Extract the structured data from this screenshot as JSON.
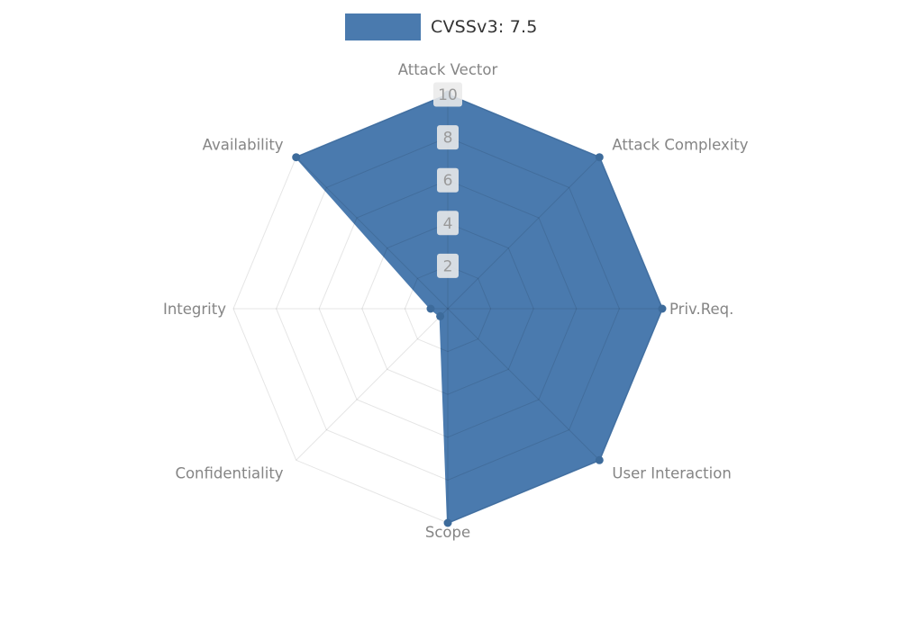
{
  "legend": {
    "label": "CVSSv3: 7.5",
    "swatch_color": "#4a7aae"
  },
  "chart_data": {
    "type": "radar",
    "title": "CVSSv3: 7.5",
    "categories": [
      "Attack Vector",
      "Attack Complexity",
      "Priv.Req.",
      "User Interaction",
      "Scope",
      "Confidentiality",
      "Integrity",
      "Availability"
    ],
    "series": [
      {
        "name": "CVSSv3: 7.5",
        "values": [
          10,
          10,
          10,
          10,
          10,
          0.5,
          0.8,
          10
        ]
      }
    ],
    "ticks": [
      2,
      4,
      6,
      8,
      10
    ],
    "axis_range": [
      0,
      10
    ],
    "grid": "on",
    "legend_position": "top-center",
    "fill_color": "#4a7aae",
    "marker_color": "#3d6b9b",
    "grid_color": "rgba(0,0,0,0.10)",
    "label_color": "#858585",
    "tick_text_color": "#9a9a9a",
    "tick_bg_color": "rgba(234,234,234,0.88)"
  }
}
